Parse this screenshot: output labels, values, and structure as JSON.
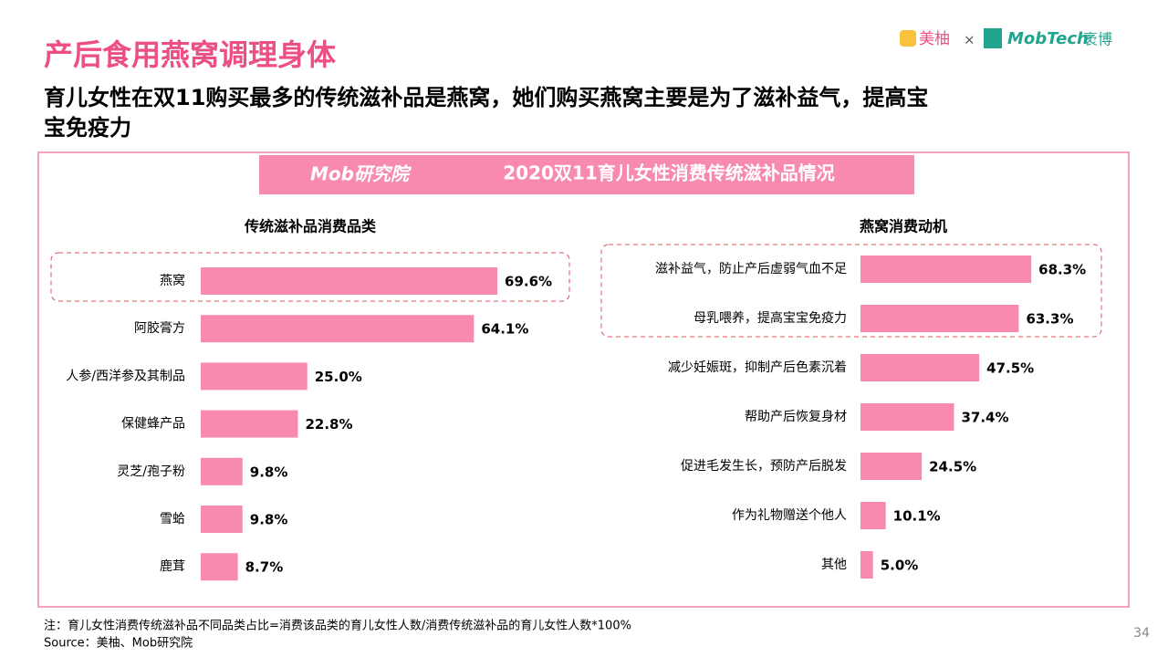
{
  "header": {
    "title": "产后食用燕窝调理身体",
    "subtitle_line1": "育儿女性在双11购买最多的传统滋补品是燕窝，她们购买燕窝主要是为了滋补益气，提高宝",
    "subtitle_line2": "宝免疫力",
    "logo_meiyou": "美柚",
    "logo_times": "×",
    "logo_mobtech": "MobTech",
    "logo_mobtech_cn": "袤博"
  },
  "panel": {
    "logo": "Mob研究院",
    "title": "2020双11育儿女性消费传统滋补品情况"
  },
  "chart_data": [
    {
      "type": "bar",
      "title": "传统滋补品消费品类",
      "color": "#f88bad",
      "categories": [
        "燕窝",
        "阿胶膏方",
        "人参/西洋参及其制品",
        "保健蜂产品",
        "灵芝/孢子粉",
        "雪蛤",
        "鹿茸"
      ],
      "values": [
        69.6,
        64.1,
        25.0,
        22.8,
        9.8,
        9.8,
        8.7
      ],
      "value_labels": [
        "69.6%",
        "64.1%",
        "25.0%",
        "22.8%",
        "9.8%",
        "9.8%",
        "8.7%"
      ]
    },
    {
      "type": "bar",
      "title": "燕窝消费动机",
      "color": "#f88bad",
      "categories": [
        "滋补益气，防止产后虚弱气血不足",
        "母乳喂养，提高宝宝免疫力",
        "减少妊娠斑，抑制产后色素沉着",
        "帮助产后恢复身材",
        "促进毛发生长，预防产后脱发",
        "作为礼物赠送个他人",
        "其他"
      ],
      "values": [
        68.3,
        63.3,
        47.5,
        37.4,
        24.5,
        10.1,
        5.0
      ],
      "value_labels": [
        "68.3%",
        "63.3%",
        "47.5%",
        "37.4%",
        "24.5%",
        "10.1%",
        "5.0%"
      ]
    }
  ],
  "footer": {
    "note": "注：育儿女性消费传统滋补品不同品类占比=消费该品类的育儿女性人数/消费传统滋补品的育儿女性人数*100%",
    "source": "Source：美柚、Mob研究院",
    "page": "34"
  }
}
